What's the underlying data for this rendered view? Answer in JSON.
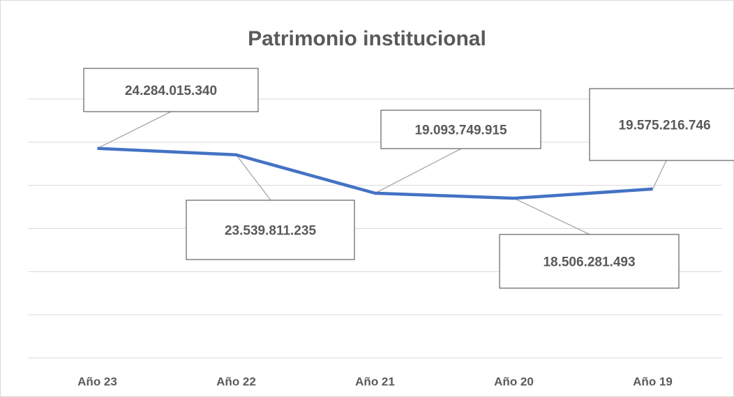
{
  "chart_data": {
    "type": "line",
    "title": "Patrimonio institucional",
    "categories": [
      "Año 23",
      "Año 22",
      "Año 21",
      "Año 20",
      "Año 19"
    ],
    "series": [
      {
        "name": "Patrimonio",
        "color": "#4472c4",
        "values": [
          24284015340,
          23539811235,
          19093749915,
          18506281493,
          19575216746
        ],
        "value_labels": [
          "24.284.015.340",
          "23.539.811.235",
          "19.093.749.915",
          "18.506.281.493",
          "19.575.216.746"
        ]
      }
    ],
    "ylim": [
      0,
      30000000000
    ],
    "yticks": [
      0,
      5000000000,
      10000000000,
      15000000000,
      20000000000,
      25000000000,
      30000000000
    ],
    "grid": true
  }
}
